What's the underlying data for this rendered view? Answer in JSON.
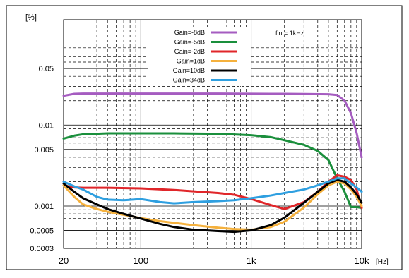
{
  "chart_data": {
    "type": "line",
    "title": "",
    "xlabel": "",
    "ylabel": "",
    "x_scale": "log",
    "y_scale": "log",
    "xlim": [
      20,
      10000
    ],
    "ylim": [
      0.0003,
      0.2
    ],
    "x_unit": "[Hz]",
    "y_unit": "[%]",
    "x_ticks": [
      {
        "value": 20,
        "label": "20"
      },
      {
        "value": 100,
        "label": "100"
      },
      {
        "value": 1000,
        "label": "1k"
      },
      {
        "value": 10000,
        "label": "10k"
      }
    ],
    "y_ticks": [
      {
        "value": 0.0003,
        "label": "0.0003"
      },
      {
        "value": 0.0005,
        "label": "0.0005"
      },
      {
        "value": 0.001,
        "label": "0.001"
      },
      {
        "value": 0.005,
        "label": "0.005"
      },
      {
        "value": 0.01,
        "label": "0.01"
      },
      {
        "value": 0.05,
        "label": "0.05"
      }
    ],
    "grid": true,
    "legend_position": "top-center",
    "annotation": "fin = 1kHz",
    "series": [
      {
        "name": "Gain=-8dB",
        "color": "#a55cc0",
        "points": [
          [
            20,
            0.023
          ],
          [
            25,
            0.0243
          ],
          [
            30,
            0.0245
          ],
          [
            50,
            0.0245
          ],
          [
            100,
            0.0245
          ],
          [
            200,
            0.0245
          ],
          [
            500,
            0.0245
          ],
          [
            1000,
            0.0244
          ],
          [
            2000,
            0.0243
          ],
          [
            3000,
            0.0242
          ],
          [
            5000,
            0.024
          ],
          [
            6000,
            0.0235
          ],
          [
            7000,
            0.02
          ],
          [
            8000,
            0.014
          ],
          [
            9000,
            0.008
          ],
          [
            10000,
            0.004
          ]
        ]
      },
      {
        "name": "Gain=-5dB",
        "color": "#1a8f3c",
        "points": [
          [
            20,
            0.0068
          ],
          [
            25,
            0.0074
          ],
          [
            30,
            0.0077
          ],
          [
            50,
            0.0079
          ],
          [
            100,
            0.0079
          ],
          [
            200,
            0.0079
          ],
          [
            500,
            0.0078
          ],
          [
            1000,
            0.0075
          ],
          [
            1500,
            0.0071
          ],
          [
            2000,
            0.0065
          ],
          [
            3000,
            0.0057
          ],
          [
            4000,
            0.0048
          ],
          [
            5000,
            0.0037
          ],
          [
            6000,
            0.0022
          ],
          [
            7000,
            0.0015
          ],
          [
            8000,
            0.00097
          ],
          [
            9000,
            0.00097
          ],
          [
            10000,
            0.00095
          ]
        ]
      },
      {
        "name": "Gain=-2dB",
        "color": "#e0262a",
        "points": [
          [
            20,
            0.0018
          ],
          [
            25,
            0.0017
          ],
          [
            30,
            0.00168
          ],
          [
            50,
            0.00168
          ],
          [
            100,
            0.00165
          ],
          [
            200,
            0.00158
          ],
          [
            300,
            0.00152
          ],
          [
            500,
            0.00145
          ],
          [
            700,
            0.00138
          ],
          [
            1000,
            0.00122
          ],
          [
            1500,
            0.00103
          ],
          [
            2000,
            0.00092
          ],
          [
            3000,
            0.00112
          ],
          [
            4000,
            0.0015
          ],
          [
            5000,
            0.002
          ],
          [
            6000,
            0.0024
          ],
          [
            7000,
            0.0023
          ],
          [
            8000,
            0.0021
          ],
          [
            9000,
            0.0016
          ],
          [
            10000,
            0.00095
          ]
        ]
      },
      {
        "name": "Gain=1dB",
        "color": "#f5b13d",
        "points": [
          [
            20,
            0.0018
          ],
          [
            25,
            0.0013
          ],
          [
            30,
            0.00105
          ],
          [
            40,
            0.00092
          ],
          [
            50,
            0.00085
          ],
          [
            70,
            0.00078
          ],
          [
            100,
            0.00071
          ],
          [
            150,
            0.00065
          ],
          [
            200,
            0.00062
          ],
          [
            300,
            0.00058
          ],
          [
            500,
            0.00054
          ],
          [
            700,
            0.00052
          ],
          [
            1000,
            0.00051
          ],
          [
            1500,
            0.00055
          ],
          [
            2000,
            0.00064
          ],
          [
            3000,
            0.00096
          ],
          [
            4000,
            0.0014
          ],
          [
            5000,
            0.0018
          ],
          [
            6000,
            0.002
          ],
          [
            7000,
            0.0019
          ],
          [
            8000,
            0.0016
          ],
          [
            9000,
            0.0013
          ],
          [
            10000,
            0.001
          ]
        ]
      },
      {
        "name": "Gain=10dB",
        "color": "#000000",
        "points": [
          [
            20,
            0.0019
          ],
          [
            25,
            0.0015
          ],
          [
            30,
            0.00125
          ],
          [
            40,
            0.00105
          ],
          [
            50,
            0.00092
          ],
          [
            70,
            0.0008
          ],
          [
            100,
            0.0007
          ],
          [
            150,
            0.0006
          ],
          [
            200,
            0.00055
          ],
          [
            300,
            0.00051
          ],
          [
            500,
            0.00049
          ],
          [
            700,
            0.00048
          ],
          [
            1000,
            0.0005
          ],
          [
            1500,
            0.00058
          ],
          [
            2000,
            0.00072
          ],
          [
            3000,
            0.0011
          ],
          [
            4000,
            0.0015
          ],
          [
            5000,
            0.0019
          ],
          [
            6000,
            0.0021
          ],
          [
            7000,
            0.002
          ],
          [
            8000,
            0.0017
          ],
          [
            9000,
            0.0014
          ],
          [
            10000,
            0.0011
          ]
        ]
      },
      {
        "name": "Gain=34dB",
        "color": "#2e9fe0",
        "points": [
          [
            20,
            0.002
          ],
          [
            25,
            0.00175
          ],
          [
            30,
            0.0016
          ],
          [
            40,
            0.0013
          ],
          [
            50,
            0.0012
          ],
          [
            70,
            0.00118
          ],
          [
            100,
            0.00122
          ],
          [
            150,
            0.00112
          ],
          [
            200,
            0.00108
          ],
          [
            300,
            0.00112
          ],
          [
            500,
            0.00115
          ],
          [
            700,
            0.00118
          ],
          [
            1000,
            0.00125
          ],
          [
            1500,
            0.00135
          ],
          [
            2000,
            0.00145
          ],
          [
            3000,
            0.0016
          ],
          [
            4000,
            0.0018
          ],
          [
            5000,
            0.002
          ],
          [
            6000,
            0.0022
          ],
          [
            7000,
            0.0022
          ],
          [
            8000,
            0.0019
          ],
          [
            9000,
            0.0017
          ],
          [
            10000,
            0.0015
          ]
        ]
      }
    ]
  }
}
